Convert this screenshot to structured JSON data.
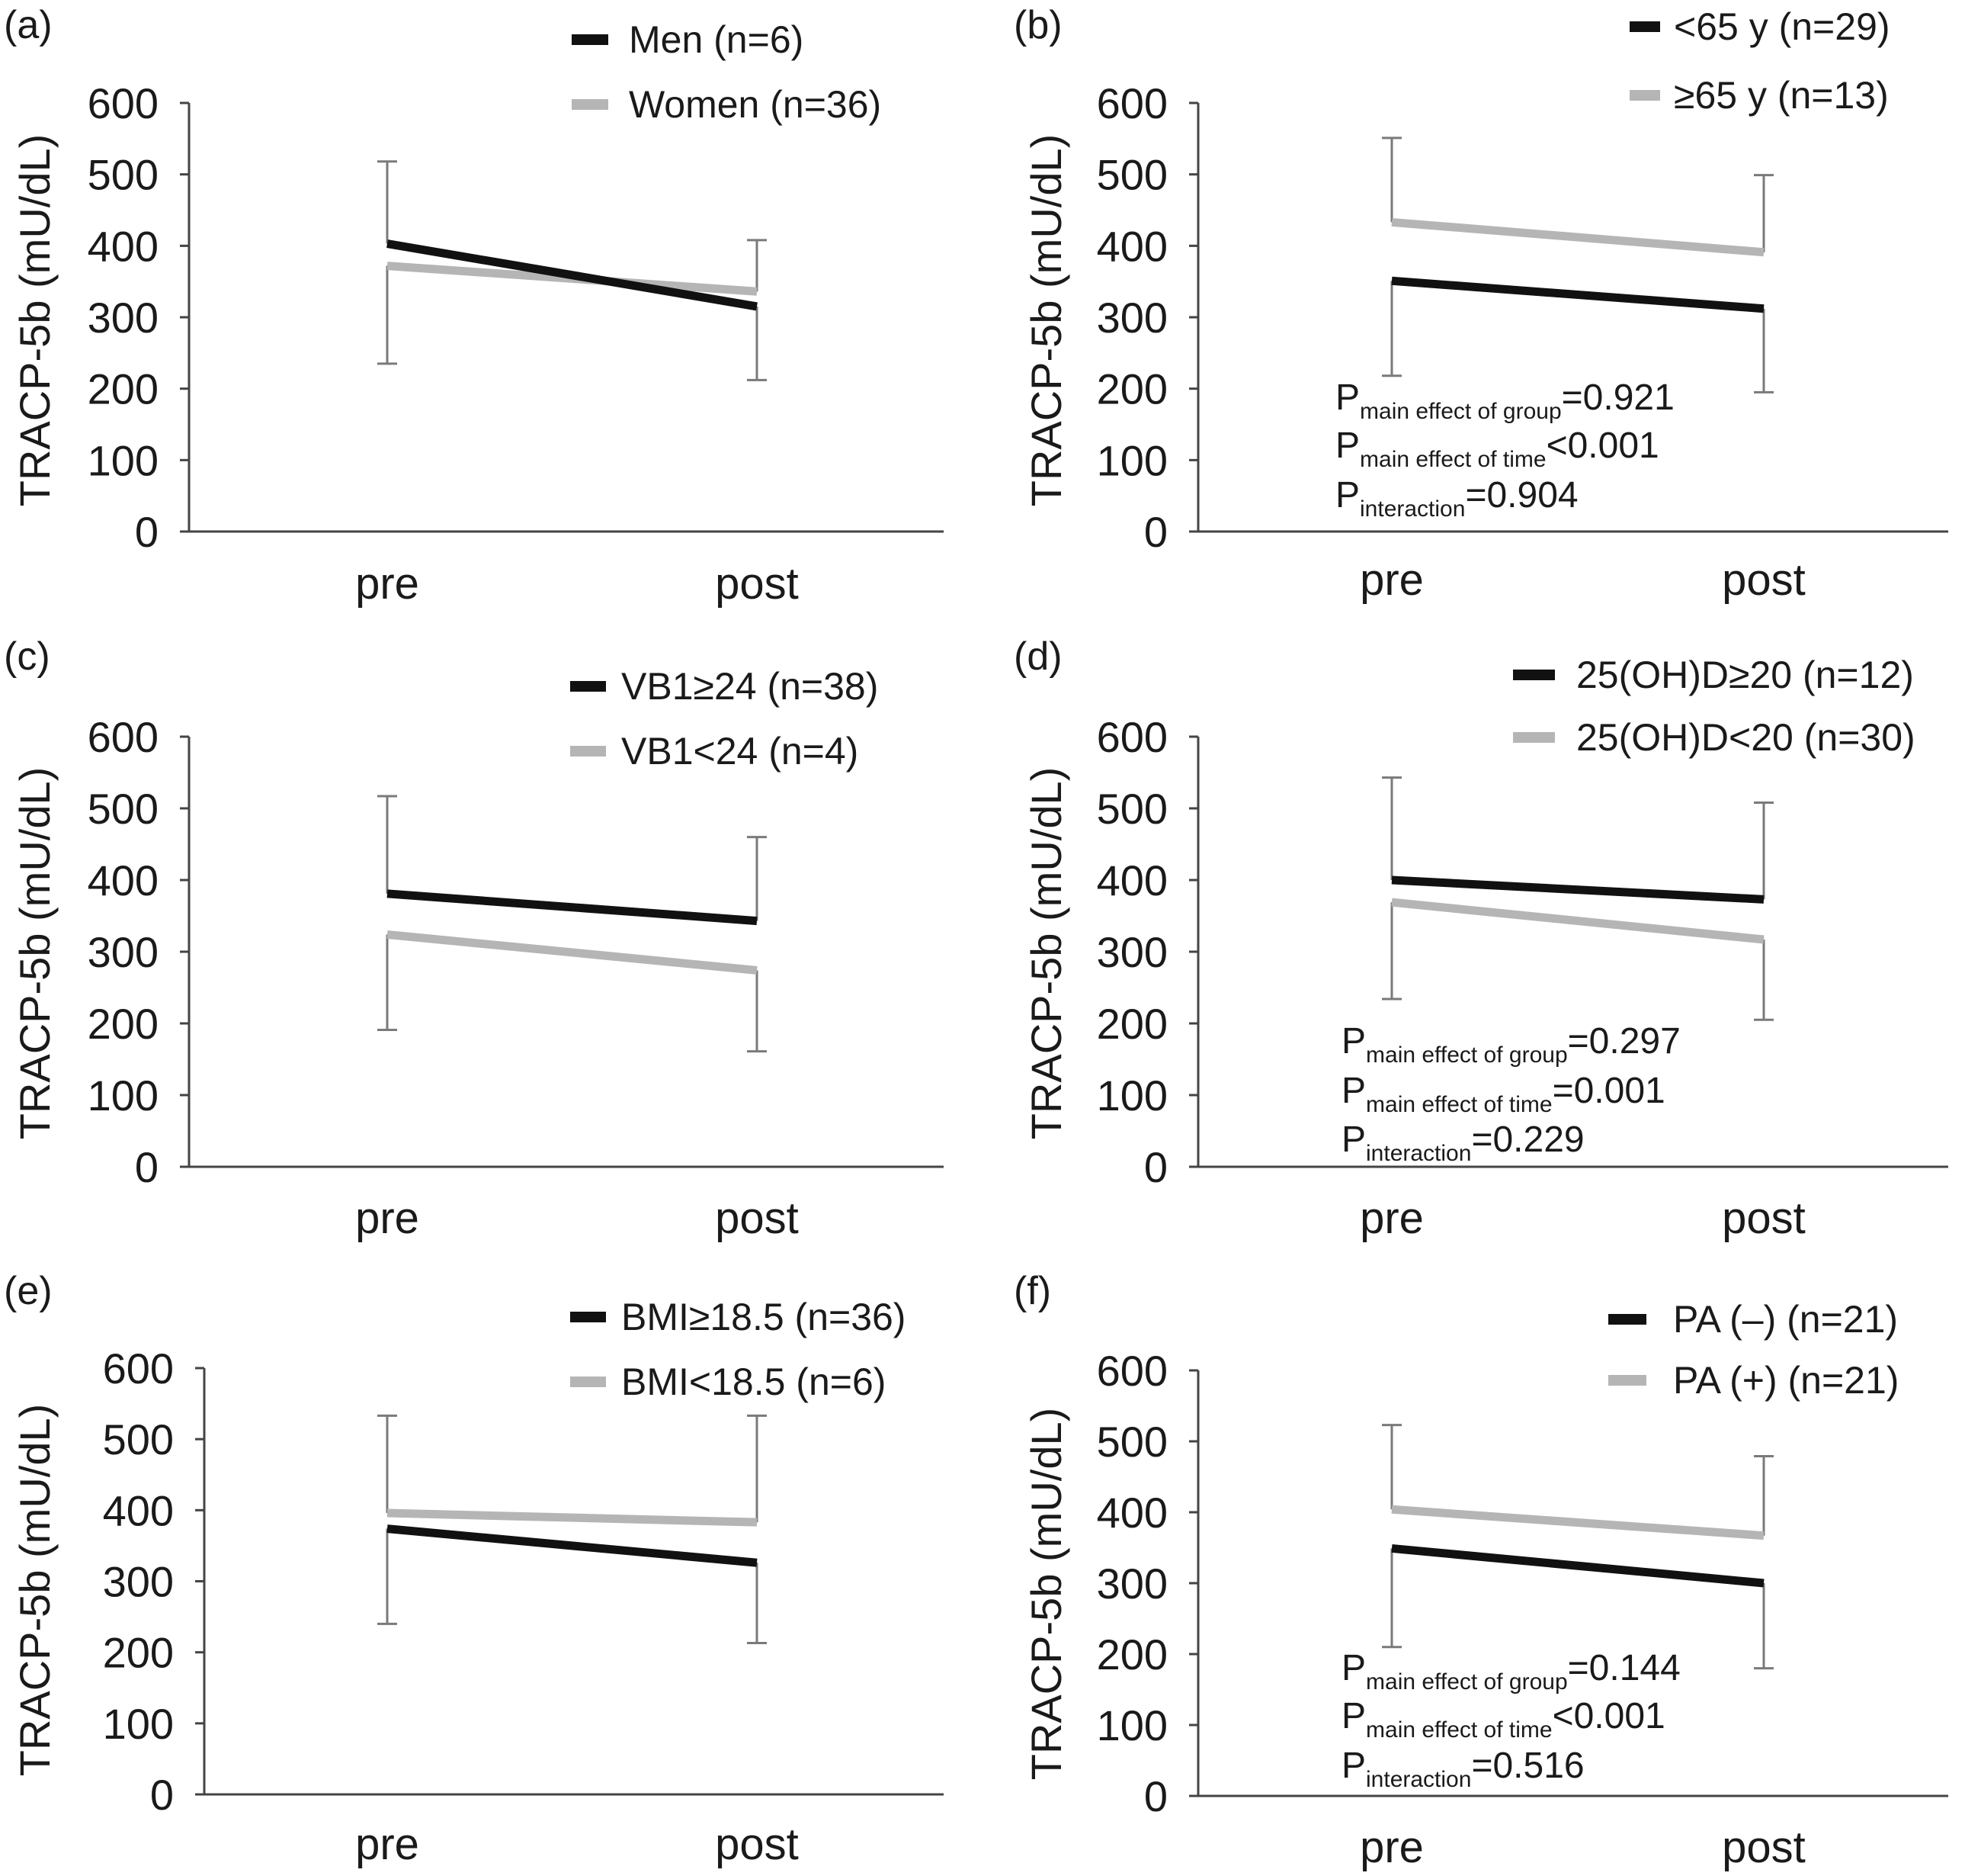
{
  "figure": {
    "colors": {
      "dark_series": "#111111",
      "light_series": "#b5b5b5",
      "error_bar": "#7a7a7a",
      "axis": "#444444"
    },
    "panels": [
      {
        "label": "(a)",
        "ylabel": "TRACP-5b (mU/dL)",
        "legend": [
          "Men (n=6)",
          "Women (n=36)"
        ],
        "stats": []
      },
      {
        "label": "(b)",
        "ylabel": "TRACP-5b (mU/dL)",
        "legend": [
          "<65 y (n=29)",
          "≥65 y (n=13)"
        ],
        "stats": [
          {
            "p": "P",
            "sub": "main effect of group",
            "rest": "=0.921"
          },
          {
            "p": "P",
            "sub": "main effect of time",
            "rest": "<0.001"
          },
          {
            "p": "P",
            "sub": "interaction",
            "rest": "=0.904"
          }
        ]
      },
      {
        "label": "(c)",
        "ylabel": "TRACP-5b (mU/dL)",
        "legend": [
          "VB1≥24 (n=38)",
          "VB1<24 (n=4)"
        ],
        "stats": []
      },
      {
        "label": "(d)",
        "ylabel": "TRACP-5b (mU/dL)",
        "legend": [
          "25(OH)D≥20 (n=12)",
          "25(OH)D<20 (n=30)"
        ],
        "stats": [
          {
            "p": "P",
            "sub": "main effect of group",
            "rest": "=0.297"
          },
          {
            "p": "P",
            "sub": "main effect of time",
            "rest": "=0.001"
          },
          {
            "p": "P",
            "sub": "interaction",
            "rest": "=0.229"
          }
        ]
      },
      {
        "label": "(e)",
        "ylabel": "TRACP-5b (mU/dL)",
        "legend": [
          "BMI≥18.5 (n=36)",
          "BMI<18.5 (n=6)"
        ],
        "stats": []
      },
      {
        "label": "(f)",
        "ylabel": "TRACP-5b (mU/dL)",
        "legend": [
          "PA (–) (n=21)",
          "PA (+) (n=21)"
        ],
        "stats": [
          {
            "p": "P",
            "sub": "main effect of group",
            "rest": "=0.144"
          },
          {
            "p": "P",
            "sub": "main effect of time",
            "rest": "<0.001"
          },
          {
            "p": "P",
            "sub": "interaction",
            "rest": "=0.516"
          }
        ]
      }
    ]
  },
  "chart_data": [
    {
      "type": "line",
      "panel": "(a)",
      "ylabel": "TRACP-5b (mU/dL)",
      "ylim": [
        0,
        600
      ],
      "yticks": [
        0,
        100,
        200,
        300,
        400,
        500,
        600
      ],
      "categories": [
        "pre",
        "post"
      ],
      "grid": false,
      "legend_position": "top-right",
      "series": [
        {
          "name": "Men (n=6)",
          "tone": "dark",
          "values": [
            403,
            315
          ],
          "error_bar": [
            518,
            212
          ]
        },
        {
          "name": "Women (n=36)",
          "tone": "light",
          "values": [
            372,
            336
          ],
          "error_bar": [
            235,
            408
          ]
        }
      ]
    },
    {
      "type": "line",
      "panel": "(b)",
      "ylabel": "TRACP-5b (mU/dL)",
      "ylim": [
        0,
        600
      ],
      "yticks": [
        0,
        100,
        200,
        300,
        400,
        500,
        600
      ],
      "categories": [
        "pre",
        "post"
      ],
      "grid": false,
      "legend_position": "top-right",
      "series": [
        {
          "name": "<65 y (n=29)",
          "tone": "dark",
          "values": [
            351,
            312
          ],
          "error_bar": [
            218,
            195
          ]
        },
        {
          "name": "≥65 y (n=13)",
          "tone": "light",
          "values": [
            433,
            391
          ],
          "error_bar": [
            551,
            499
          ]
        }
      ]
    },
    {
      "type": "line",
      "panel": "(c)",
      "ylabel": "TRACP-5b (mU/dL)",
      "ylim": [
        0,
        600
      ],
      "yticks": [
        0,
        100,
        200,
        300,
        400,
        500,
        600
      ],
      "categories": [
        "pre",
        "post"
      ],
      "grid": false,
      "legend_position": "top-right",
      "series": [
        {
          "name": "VB1≥24 (n=38)",
          "tone": "dark",
          "values": [
            381,
            343
          ],
          "error_bar": [
            517,
            460
          ]
        },
        {
          "name": "VB1<24 (n=4)",
          "tone": "light",
          "values": [
            324,
            274
          ],
          "error_bar": [
            191,
            161
          ]
        }
      ]
    },
    {
      "type": "line",
      "panel": "(d)",
      "ylabel": "TRACP-5b (mU/dL)",
      "ylim": [
        0,
        600
      ],
      "yticks": [
        0,
        100,
        200,
        300,
        400,
        500,
        600
      ],
      "categories": [
        "pre",
        "post"
      ],
      "grid": false,
      "legend_position": "top-right",
      "series": [
        {
          "name": "25(OH)D≥20 (n=12)",
          "tone": "dark",
          "values": [
            400,
            373
          ],
          "error_bar": [
            543,
            508
          ]
        },
        {
          "name": "25(OH)D<20 (n=30)",
          "tone": "light",
          "values": [
            369,
            317
          ],
          "error_bar": [
            234,
            205
          ]
        }
      ]
    },
    {
      "type": "line",
      "panel": "(e)",
      "ylabel": "TRACP-5b (mU/dL)",
      "ylim": [
        0,
        600
      ],
      "yticks": [
        0,
        100,
        200,
        300,
        400,
        500,
        600
      ],
      "categories": [
        "pre",
        "post"
      ],
      "grid": false,
      "legend_position": "top-right",
      "series": [
        {
          "name": "BMI≥18.5 (n=36)",
          "tone": "dark",
          "values": [
            374,
            326
          ],
          "error_bar": [
            240,
            213
          ]
        },
        {
          "name": "BMI<18.5 (n=6)",
          "tone": "light",
          "values": [
            396,
            383
          ],
          "error_bar": [
            533,
            533
          ]
        }
      ]
    },
    {
      "type": "line",
      "panel": "(f)",
      "ylabel": "TRACP-5b (mU/dL)",
      "ylim": [
        0,
        600
      ],
      "yticks": [
        0,
        100,
        200,
        300,
        400,
        500,
        600
      ],
      "categories": [
        "pre",
        "post"
      ],
      "grid": false,
      "legend_position": "top-right",
      "series": [
        {
          "name": "PA (–) (n=21)",
          "tone": "dark",
          "values": [
            349,
            300
          ],
          "error_bar": [
            210,
            180
          ]
        },
        {
          "name": "PA (+) (n=21)",
          "tone": "light",
          "values": [
            404,
            367
          ],
          "error_bar": [
            523,
            479
          ]
        }
      ]
    }
  ]
}
